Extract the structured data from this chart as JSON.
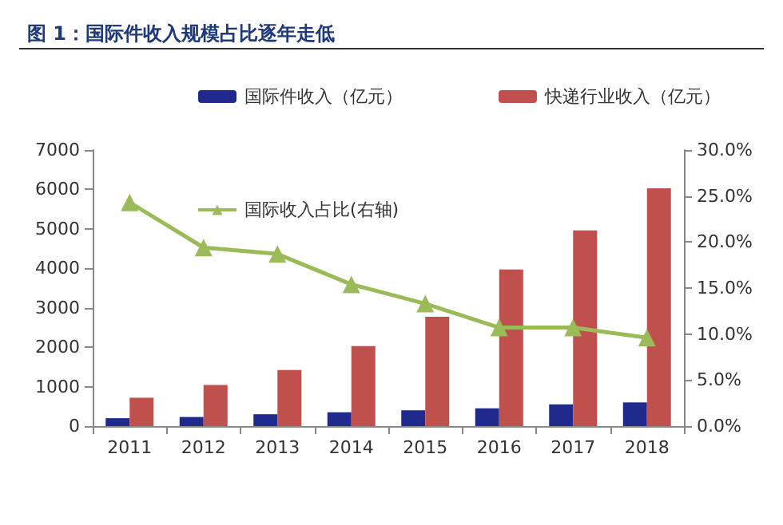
{
  "chart_data": {
    "type": "bar",
    "title": "图 1：国际件收入规模占比逐年走低",
    "categories": [
      "2011",
      "2012",
      "2013",
      "2014",
      "2015",
      "2016",
      "2017",
      "2018"
    ],
    "series": [
      {
        "name": "国际件收入（亿元）",
        "color": "#1f2a8c",
        "values": [
          200,
          230,
          300,
          350,
          400,
          450,
          550,
          600
        ]
      },
      {
        "name": "快递行业收入（亿元）",
        "color": "#c0504d",
        "values": [
          720,
          1040,
          1420,
          2030,
          2770,
          3970,
          4960,
          6030
        ]
      },
      {
        "name": "国际收入占比(右轴)",
        "type": "line",
        "axis": "y2",
        "color": "#9bbb59",
        "marker": "triangle",
        "values": [
          24.3,
          19.4,
          18.7,
          15.4,
          13.3,
          10.7,
          10.7,
          9.6
        ]
      }
    ],
    "ylim": [
      0,
      7000
    ],
    "yticks": [
      0,
      1000,
      2000,
      3000,
      4000,
      5000,
      6000,
      7000
    ],
    "y2lim": [
      0,
      30
    ],
    "y2ticks": [
      {
        "value": 0,
        "label": "0.0%"
      },
      {
        "value": 5,
        "label": "5.0%"
      },
      {
        "value": 10,
        "label": "10.0%"
      },
      {
        "value": 15,
        "label": "15.0%"
      },
      {
        "value": 20,
        "label": "20.0%"
      },
      {
        "value": 25,
        "label": "25.0%"
      },
      {
        "value": 30,
        "label": "30.0%"
      }
    ],
    "legend": "top",
    "grid": false
  }
}
